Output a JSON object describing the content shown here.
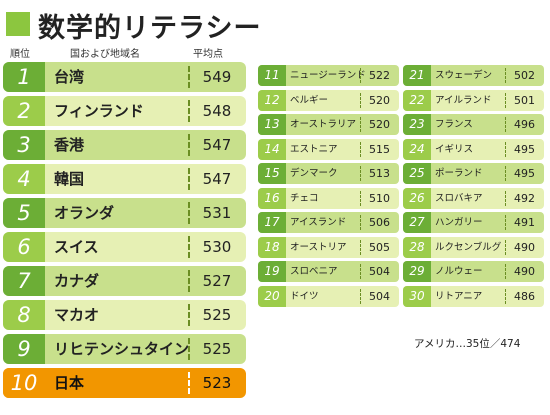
{
  "title": "数学的リテラシー",
  "headers": {
    "rank": "順位",
    "name": "国および地域名",
    "score": "平均点"
  },
  "left": [
    {
      "rank": "1",
      "name": "台湾",
      "score": "549"
    },
    {
      "rank": "2",
      "name": "フィンランド",
      "score": "548"
    },
    {
      "rank": "3",
      "name": "香港",
      "score": "547"
    },
    {
      "rank": "4",
      "name": "韓国",
      "score": "547"
    },
    {
      "rank": "5",
      "name": "オランダ",
      "score": "531"
    },
    {
      "rank": "6",
      "name": "スイス",
      "score": "530"
    },
    {
      "rank": "7",
      "name": "カナダ",
      "score": "527"
    },
    {
      "rank": "8",
      "name": "マカオ",
      "score": "525"
    },
    {
      "rank": "9",
      "name": "リヒテンシュタイン",
      "score": "525"
    },
    {
      "rank": "10",
      "name": "日本",
      "score": "523"
    }
  ],
  "middle": [
    {
      "rank": "11",
      "name": "ニュージーランド",
      "score": "522"
    },
    {
      "rank": "12",
      "name": "ベルギー",
      "score": "520"
    },
    {
      "rank": "13",
      "name": "オーストラリア",
      "score": "520"
    },
    {
      "rank": "14",
      "name": "エストニア",
      "score": "515"
    },
    {
      "rank": "15",
      "name": "デンマーク",
      "score": "513"
    },
    {
      "rank": "16",
      "name": "チェコ",
      "score": "510"
    },
    {
      "rank": "17",
      "name": "アイスランド",
      "score": "506"
    },
    {
      "rank": "18",
      "name": "オーストリア",
      "score": "505"
    },
    {
      "rank": "19",
      "name": "スロベニア",
      "score": "504"
    },
    {
      "rank": "20",
      "name": "ドイツ",
      "score": "504"
    }
  ],
  "right": [
    {
      "rank": "21",
      "name": "スウェーデン",
      "score": "502"
    },
    {
      "rank": "22",
      "name": "アイルランド",
      "score": "501"
    },
    {
      "rank": "23",
      "name": "フランス",
      "score": "496"
    },
    {
      "rank": "24",
      "name": "イギリス",
      "score": "495"
    },
    {
      "rank": "25",
      "name": "ポーランド",
      "score": "495"
    },
    {
      "rank": "26",
      "name": "スロバキア",
      "score": "492"
    },
    {
      "rank": "27",
      "name": "ハンガリー",
      "score": "491"
    },
    {
      "rank": "28",
      "name": "ルクセンブルグ",
      "score": "490"
    },
    {
      "rank": "29",
      "name": "ノルウェー",
      "score": "490"
    },
    {
      "rank": "30",
      "name": "リトアニア",
      "score": "486"
    }
  ],
  "note": "アメリカ…35位／474",
  "colors": {
    "accent_green": "#8cc63f",
    "dark_row": "#c8e08c",
    "light_row": "#e6f0b4",
    "japan": "#f29600"
  }
}
